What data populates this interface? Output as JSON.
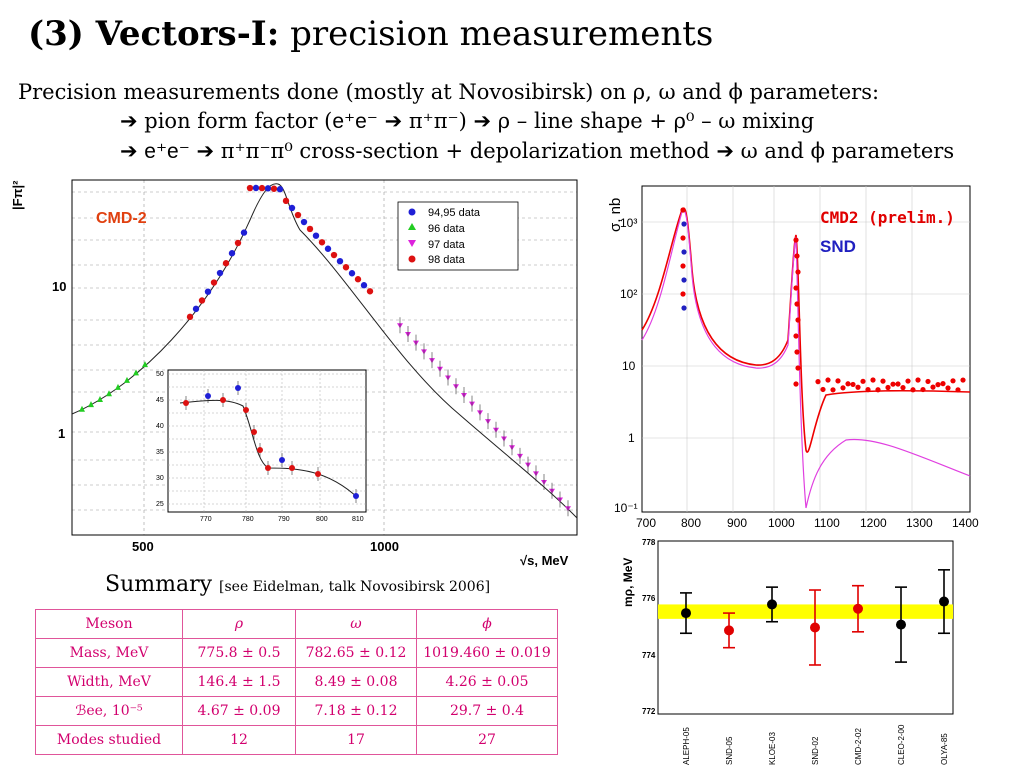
{
  "title": {
    "bold": "(3) Vectors-I:",
    "rest": " precision measurements"
  },
  "intro": {
    "line1": "Precision measurements done (mostly at Novosibirsk) on ρ, ω and ϕ parameters:",
    "line2_a": "➔ pion form factor (",
    "line2_b": "e⁺e⁻",
    "line2_c": " ➔ π⁺π⁻) ➔ ρ – line shape + ρ⁰ – ω mixing",
    "line3_a": "➔ ",
    "line3_b": "e⁺e⁻",
    "line3_c": " ➔ π⁺π⁻π⁰ cross-section + depolarization method ➔ ω and ϕ parameters"
  },
  "summary": {
    "title": "Summary",
    "ref": "[see Eidelman, talk Novosibirsk 2006]"
  },
  "table": {
    "header": [
      "Meson",
      "ρ",
      "ω",
      "ϕ"
    ],
    "rows": [
      [
        "Mass, MeV",
        "775.8 ± 0.5",
        "782.65 ± 0.12",
        "1019.460 ± 0.019"
      ],
      [
        "Width, MeV",
        "146.4 ± 1.5",
        "8.49 ± 0.08",
        "4.26 ± 0.05"
      ],
      [
        "ℬee, 10⁻⁵",
        "4.67 ± 0.09",
        "7.18 ± 0.12",
        "29.7 ± 0.4"
      ],
      [
        "Modes studied",
        "12",
        "17",
        "27"
      ]
    ]
  },
  "chart_data": [
    {
      "type": "scatter",
      "ylabel": "|Fπ|²",
      "xlabel": "√s, MeV",
      "label": "CMD-2",
      "yscale": "log",
      "x_ticks": [
        "500",
        "1000"
      ],
      "y_ticks": [
        "1",
        "10"
      ],
      "legend": [
        "94,95 data",
        "96 data",
        "97 data",
        "98 data"
      ],
      "legend_colors": [
        "#1f1fd6",
        "#22cc22",
        "#dd22dd",
        "#dd1111"
      ],
      "inset": {
        "x_ticks": [
          "770",
          "780",
          "790",
          "800",
          "810"
        ],
        "y_ticks": [
          "25",
          "30",
          "35",
          "40",
          "45",
          "50"
        ]
      }
    },
    {
      "type": "scatter",
      "ylabel": "σ, nb",
      "yscale": "log",
      "x_ticks": [
        "700",
        "800",
        "900",
        "1000",
        "1100",
        "1200",
        "1300",
        "1400"
      ],
      "y_ticks": [
        "10⁻¹",
        "1",
        "10",
        "10²",
        "10³"
      ],
      "labels": [
        "CMD2 (prelim.)",
        "SND"
      ],
      "label_colors": [
        "#e00000",
        "#2020c0"
      ]
    },
    {
      "type": "scatter",
      "ylabel": "mρ, MeV",
      "categories": [
        "ALEPH-05",
        "SND-05",
        "KLOE-03",
        "SND-02",
        "CMD-2-02",
        "CLEO-2-00",
        "OLYA-85"
      ],
      "values": [
        775.5,
        774.9,
        775.8,
        775.0,
        775.65,
        775.1,
        775.9
      ],
      "err_low": [
        0.7,
        0.6,
        0.6,
        1.3,
        0.8,
        1.3,
        1.1
      ],
      "err_high": [
        0.7,
        0.6,
        0.6,
        1.3,
        0.8,
        1.3,
        1.1
      ],
      "colors": [
        "#000",
        "#e00000",
        "#000",
        "#e00000",
        "#e00000",
        "#000",
        "#000"
      ],
      "band": [
        775.3,
        775.8
      ],
      "ylim": [
        772,
        778
      ],
      "y_ticks": [
        "772",
        "774",
        "776",
        "778"
      ]
    }
  ]
}
